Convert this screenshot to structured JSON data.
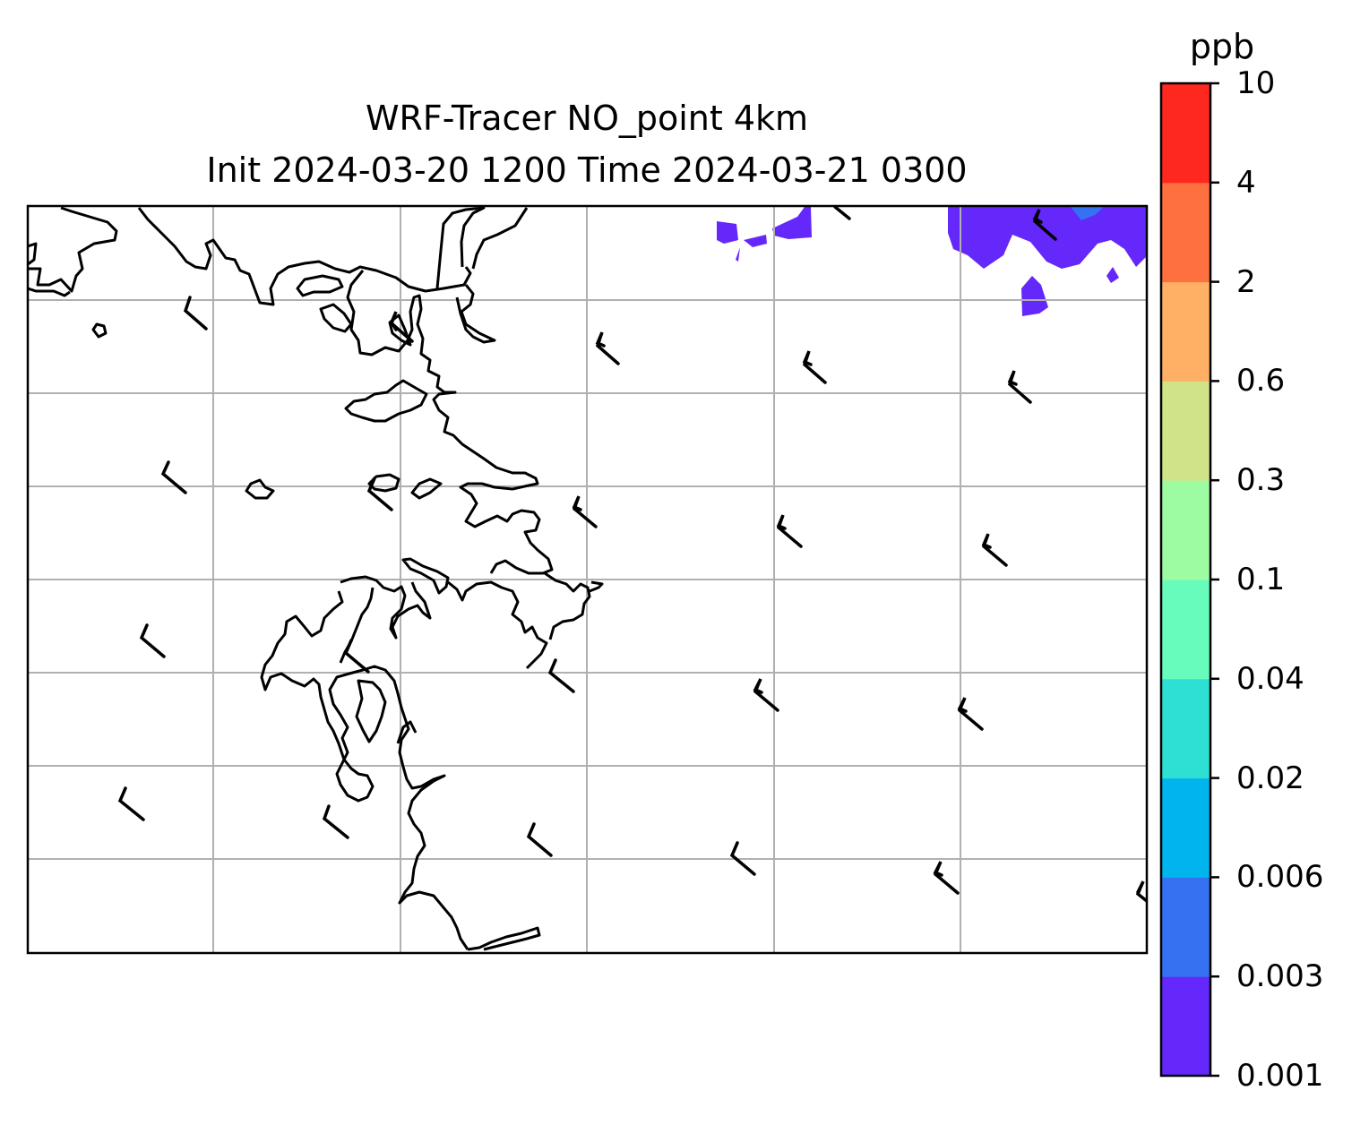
{
  "figure": {
    "title_line1": "WRF-Tracer NO_point 4km",
    "title_line2": "Init 2024-03-20 1200 Time 2024-03-21 0300"
  },
  "colorbar": {
    "label": "ppb",
    "levels": [
      "0.001",
      "0.003",
      "0.006",
      "0.02",
      "0.04",
      "0.1",
      "0.3",
      "0.6",
      "2",
      "4",
      "10"
    ],
    "colors": [
      "#6428fa",
      "#3572f2",
      "#00b4ee",
      "#2ee0d4",
      "#68fcbc",
      "#9dfca1",
      "#d0e388",
      "#ffb064",
      "#ff7040",
      "#ff281e"
    ]
  },
  "map": {
    "gridline_color": "#b0b0b0",
    "coastline_color": "#000000",
    "wind_barbs": "black barbs pointing from north-west",
    "tracer_plume_level": "0.001-0.003 ppb (purple) with a small 0.003-0.006 ppb patch in north-east"
  }
}
